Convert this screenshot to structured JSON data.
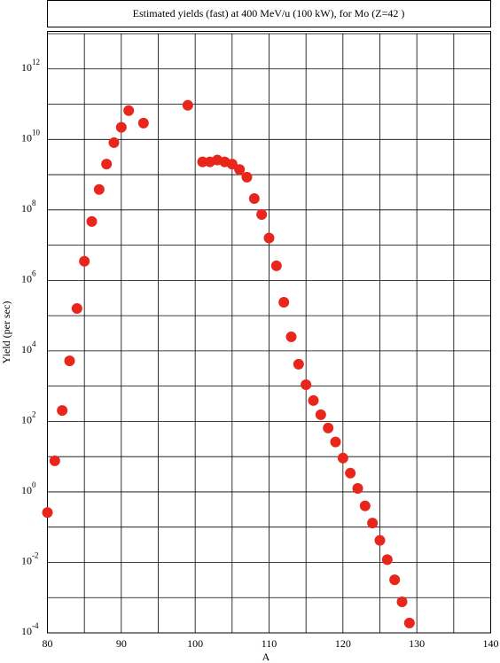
{
  "chart_data": {
    "type": "scatter",
    "title": "Estimated yields (fast) at 400 MeV/u (100 kW), for Mo (Z=42 )",
    "x_label": "A",
    "y_label": "Yield (per sec)",
    "log_y": true,
    "grid": true,
    "color": "#e8261c",
    "xlim": [
      80,
      140
    ],
    "xticks": [
      80,
      90,
      100,
      110,
      120,
      130,
      140
    ],
    "minor_xticks": [
      85,
      95,
      105,
      115,
      125,
      135
    ],
    "ylim": [
      0.0001,
      10000000000000
    ],
    "yticks": [
      {
        "value": 0.0001,
        "label": "10",
        "exponent": "-4"
      },
      {
        "value": 0.01,
        "label": "10",
        "exponent": "-2"
      },
      {
        "value": 1,
        "label": "10",
        "exponent": "0"
      },
      {
        "value": 100,
        "label": "10",
        "exponent": "2"
      },
      {
        "value": 10000,
        "label": "10",
        "exponent": "4"
      },
      {
        "value": 1000000,
        "label": "10",
        "exponent": "6"
      },
      {
        "value": 100000000,
        "label": "10",
        "exponent": "8"
      },
      {
        "value": 10000000000,
        "label": "10",
        "exponent": "10"
      },
      {
        "value": 1000000000000,
        "label": "10",
        "exponent": "12"
      }
    ],
    "minor_yticks": [
      0.001,
      0.1,
      10,
      1000,
      100000,
      10000000,
      1000000000,
      100000000000,
      10000000000000
    ],
    "x": [
      80,
      81,
      82,
      83,
      84,
      85,
      86,
      87,
      88,
      89,
      90,
      91,
      93,
      99,
      101,
      102,
      103,
      104,
      105,
      106,
      107,
      108,
      109,
      110,
      111,
      112,
      113,
      114,
      115,
      116,
      117,
      118,
      119,
      120,
      121,
      122,
      123,
      124,
      125,
      126,
      127,
      128,
      129
    ],
    "values": [
      0.26,
      7.6,
      204,
      5200,
      160000,
      3500000,
      47000000,
      380000000,
      2000000000,
      8100000000,
      22000000000,
      66000000000,
      29000000000,
      93000000000,
      2300000000,
      2300000000,
      2600000000,
      2300000000,
      2000000000,
      1400000000,
      850000000,
      210000000,
      74000000,
      16000000,
      2600000,
      240000,
      25000,
      4200,
      1100,
      390,
      155,
      65,
      26,
      9.1,
      3.4,
      1.26,
      0.4,
      0.13,
      0.042,
      0.012,
      0.0032,
      0.00076,
      0.00019
    ]
  }
}
